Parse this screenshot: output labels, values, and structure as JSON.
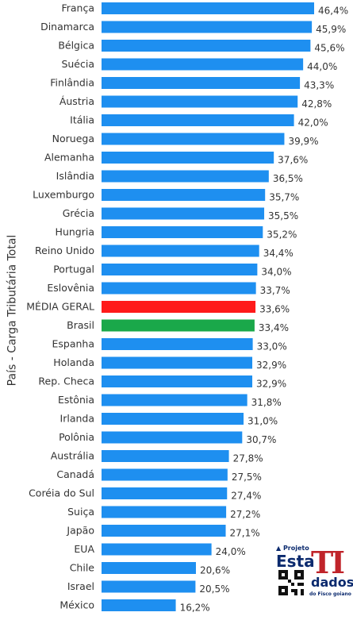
{
  "chart_data": {
    "type": "bar",
    "orientation": "horizontal",
    "ylabel": "País - Carga Tributária Total",
    "xlim": [
      0,
      46.4
    ],
    "categories": [
      "França",
      "Dinamarca",
      "Bélgica",
      "Suécia",
      "Finlândia",
      "Áustria",
      "Itália",
      "Noruega",
      "Alemanha",
      "Islândia",
      "Luxemburgo",
      "Grécia",
      "Hungria",
      "Reino Unido",
      "Portugal",
      "Eslovênia",
      "MÉDIA GERAL",
      "Brasil",
      "Espanha",
      "Holanda",
      "Rep. Checa",
      "Estônia",
      "Irlanda",
      "Polônia",
      "Austrália",
      "Canadá",
      "Coréia do Sul",
      "Suiça",
      "Japão",
      "EUA",
      "Chile",
      "Israel",
      "México"
    ],
    "values": [
      46.4,
      45.9,
      45.6,
      44.0,
      43.3,
      42.8,
      42.0,
      39.9,
      37.6,
      36.5,
      35.7,
      35.5,
      35.2,
      34.4,
      34.0,
      33.7,
      33.6,
      33.4,
      33.0,
      32.9,
      32.9,
      31.8,
      31.0,
      30.7,
      27.8,
      27.5,
      27.4,
      27.2,
      27.1,
      24.0,
      20.6,
      20.5,
      16.2
    ],
    "value_labels": [
      "46,4%",
      "45,9%",
      "45,6%",
      "44,0%",
      "43,3%",
      "42,8%",
      "42,0%",
      "39,9%",
      "37,6%",
      "36,5%",
      "35,7%",
      "35,5%",
      "35,2%",
      "34,4%",
      "34,0%",
      "33,7%",
      "33,6%",
      "33,4%",
      "33,0%",
      "32,9%",
      "32,9%",
      "31,8%",
      "31,0%",
      "30,7%",
      "27,8%",
      "27,5%",
      "27,4%",
      "27,2%",
      "27,1%",
      "24,0%",
      "20,6%",
      "20,5%",
      "16,2%"
    ],
    "colors": {
      "default": "#1e8ff0",
      "highlight_avg": "#ff1a1a",
      "highlight_brazil": "#1aa84a"
    },
    "highlights": {
      "MÉDIA GERAL": "highlight_avg",
      "Brasil": "highlight_brazil"
    },
    "grid": false,
    "legend": "none"
  },
  "logo": {
    "top_text": "Projeto",
    "word1": "Esta",
    "word2": "TI",
    "word3": "dados",
    "subtitle": "do Fisco goiano"
  }
}
